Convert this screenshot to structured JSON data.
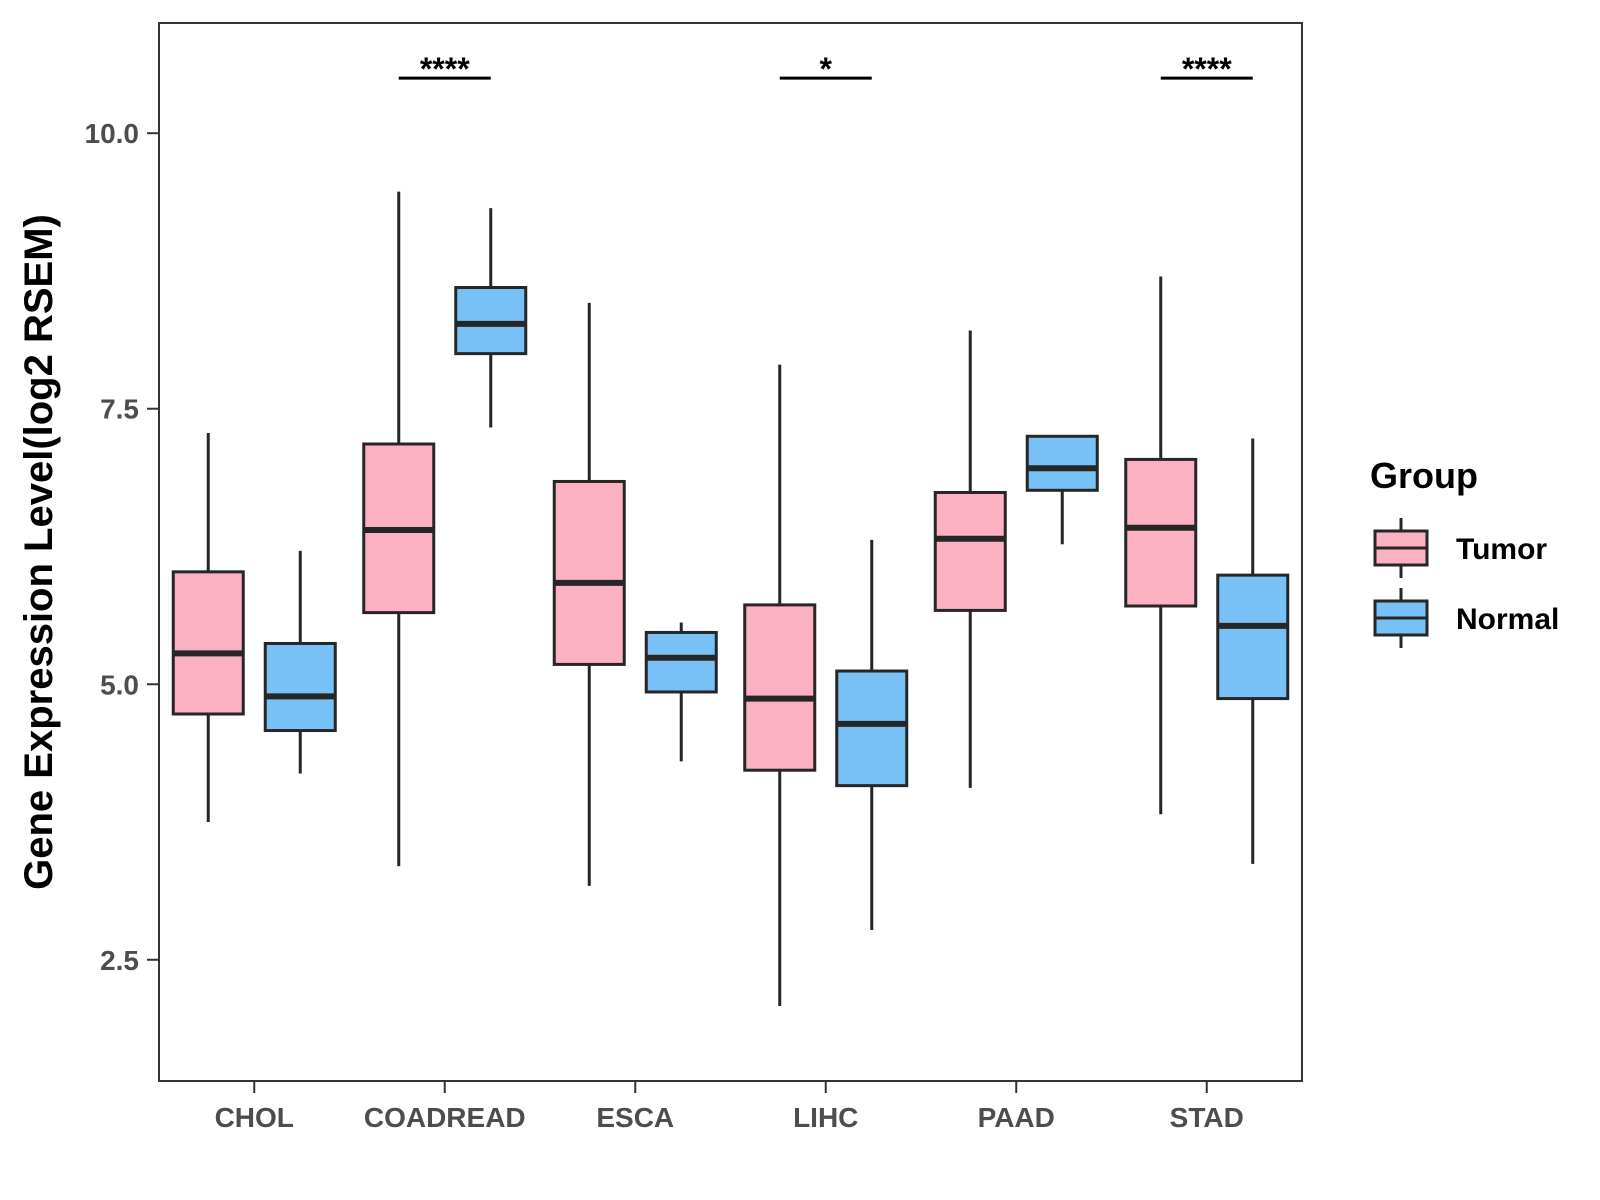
{
  "chart_data": {
    "type": "boxplot",
    "title": "",
    "xlabel": "",
    "ylabel": "Gene Expression Level(log2 RSEM)",
    "ylim": [
      1.4,
      11.0
    ],
    "yticks": [
      2.5,
      5.0,
      7.5,
      10.0
    ],
    "ytick_labels": [
      "2.5",
      "5.0",
      "7.5",
      "10.0"
    ],
    "categories": [
      "CHOL",
      "COADREAD",
      "ESCA",
      "LIHC",
      "PAAD",
      "STAD"
    ],
    "legend": {
      "title": "Group",
      "position": "right",
      "entries": [
        "Tumor",
        "Normal"
      ]
    },
    "colors": {
      "Tumor": "#fbb1c2",
      "Normal": "#77c1f6",
      "outline": "#262626"
    },
    "series": [
      {
        "name": "Tumor",
        "boxes": [
          {
            "category": "CHOL",
            "min": 3.75,
            "q1": 4.73,
            "median": 5.28,
            "q3": 6.02,
            "max": 7.28
          },
          {
            "category": "COADREAD",
            "min": 3.35,
            "q1": 5.65,
            "median": 6.4,
            "q3": 7.18,
            "max": 9.47
          },
          {
            "category": "ESCA",
            "min": 3.17,
            "q1": 5.18,
            "median": 5.92,
            "q3": 6.84,
            "max": 8.46
          },
          {
            "category": "LIHC",
            "min": 2.08,
            "q1": 4.22,
            "median": 4.87,
            "q3": 5.72,
            "max": 7.9
          },
          {
            "category": "PAAD",
            "min": 4.06,
            "q1": 5.67,
            "median": 6.32,
            "q3": 6.74,
            "max": 8.21
          },
          {
            "category": "STAD",
            "min": 3.82,
            "q1": 5.71,
            "median": 6.42,
            "q3": 7.04,
            "max": 8.7
          }
        ]
      },
      {
        "name": "Normal",
        "boxes": [
          {
            "category": "CHOL",
            "min": 4.19,
            "q1": 4.58,
            "median": 4.89,
            "q3": 5.37,
            "max": 6.21
          },
          {
            "category": "COADREAD",
            "min": 7.33,
            "q1": 8.0,
            "median": 8.27,
            "q3": 8.6,
            "max": 9.32
          },
          {
            "category": "ESCA",
            "min": 4.3,
            "q1": 4.93,
            "median": 5.24,
            "q3": 5.47,
            "max": 5.56
          },
          {
            "category": "LIHC",
            "min": 2.77,
            "q1": 4.08,
            "median": 4.64,
            "q3": 5.12,
            "max": 6.31
          },
          {
            "category": "PAAD",
            "min": 6.27,
            "q1": 6.76,
            "median": 6.96,
            "q3": 7.25,
            "max": 7.25
          },
          {
            "category": "STAD",
            "min": 3.37,
            "q1": 4.87,
            "median": 5.53,
            "q3": 5.99,
            "max": 7.23
          }
        ]
      }
    ],
    "significance": [
      {
        "category": "COADREAD",
        "label": "****"
      },
      {
        "category": "LIHC",
        "label": "*"
      },
      {
        "category": "STAD",
        "label": "****"
      }
    ],
    "significance_y": 10.5
  }
}
